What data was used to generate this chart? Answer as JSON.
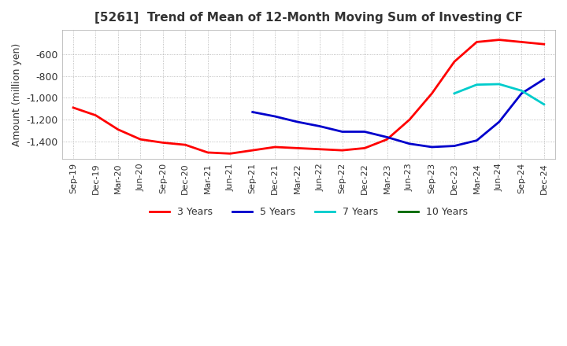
{
  "title": "[5261]  Trend of Mean of 12-Month Moving Sum of Investing CF",
  "ylabel": "Amount (million yen)",
  "x_labels": [
    "Sep-19",
    "Dec-19",
    "Mar-20",
    "Jun-20",
    "Sep-20",
    "Dec-20",
    "Mar-21",
    "Jun-21",
    "Sep-21",
    "Dec-21",
    "Mar-22",
    "Jun-22",
    "Sep-22",
    "Dec-22",
    "Mar-23",
    "Jun-23",
    "Sep-23",
    "Dec-23",
    "Mar-24",
    "Jun-24",
    "Sep-24",
    "Dec-24"
  ],
  "ylim": [
    -1560,
    -380
  ],
  "yticks": [
    -600,
    -800,
    -1000,
    -1200,
    -1400
  ],
  "series": {
    "3years": {
      "color": "#ff0000",
      "values": [
        -1090,
        -1160,
        -1290,
        -1380,
        -1410,
        -1430,
        -1500,
        -1510,
        -1480,
        -1450,
        -1460,
        -1470,
        -1480,
        -1460,
        -1380,
        -1200,
        -960,
        -670,
        -490,
        -470,
        -490,
        -510
      ]
    },
    "5years": {
      "color": "#0000cc",
      "values": [
        null,
        null,
        null,
        null,
        null,
        null,
        null,
        null,
        -1130,
        -1170,
        -1220,
        -1260,
        -1310,
        -1310,
        -1360,
        -1420,
        -1450,
        -1440,
        -1390,
        -1220,
        -960,
        -830
      ]
    },
    "7years": {
      "color": "#00cccc",
      "values": [
        null,
        null,
        null,
        null,
        null,
        null,
        null,
        null,
        null,
        null,
        null,
        null,
        null,
        null,
        null,
        null,
        null,
        -960,
        -880,
        -875,
        -935,
        -1060
      ]
    },
    "10years": {
      "color": "#006600",
      "values": [
        null,
        null,
        null,
        null,
        null,
        null,
        null,
        null,
        null,
        null,
        null,
        null,
        null,
        null,
        null,
        null,
        null,
        null,
        null,
        null,
        null,
        null
      ]
    }
  },
  "legend": [
    {
      "label": "3 Years",
      "color": "#ff0000"
    },
    {
      "label": "5 Years",
      "color": "#0000cc"
    },
    {
      "label": "7 Years",
      "color": "#00cccc"
    },
    {
      "label": "10 Years",
      "color": "#006600"
    }
  ]
}
